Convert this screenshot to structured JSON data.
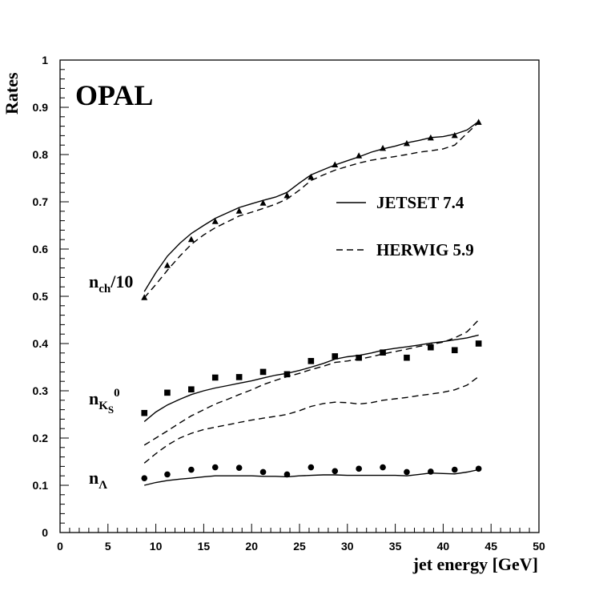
{
  "chart_data": {
    "type": "line",
    "title": "OPAL",
    "xlabel": "jet energy [GeV]",
    "ylabel": "Rates",
    "xlim": [
      0,
      50
    ],
    "ylim": [
      0,
      1
    ],
    "x_ticks": [
      "0",
      "5",
      "10",
      "15",
      "20",
      "25",
      "30",
      "35",
      "40",
      "45",
      "50"
    ],
    "y_ticks": [
      "0",
      "0.1",
      "0.2",
      "0.3",
      "0.4",
      "0.5",
      "0.6",
      "0.7",
      "0.8",
      "0.9",
      "1"
    ],
    "legend": {
      "placement": "middle-right",
      "entries": [
        {
          "name": "JETSET 7.4",
          "style": "solid"
        },
        {
          "name": "HERWIG 5.9",
          "style": "dashed"
        }
      ]
    },
    "annotations": {
      "nch": {
        "main": "n",
        "sub": "ch",
        "suffix": "/10"
      },
      "nk0": {
        "main": "n",
        "sub": "K",
        "subsub": "S",
        "sup": "0"
      },
      "nlambda": {
        "main": "n",
        "sub": "Λ"
      }
    },
    "series": [
      {
        "name": "n_ch/10 data",
        "kind": "points",
        "marker": "triangle",
        "x": [
          8.8,
          11.2,
          13.7,
          16.2,
          18.7,
          21.2,
          23.7,
          26.2,
          28.7,
          31.2,
          33.7,
          36.2,
          38.7,
          41.2,
          43.7
        ],
        "y": [
          0.497,
          0.565,
          0.62,
          0.658,
          0.68,
          0.697,
          0.713,
          0.752,
          0.778,
          0.797,
          0.813,
          0.823,
          0.835,
          0.84,
          0.868
        ]
      },
      {
        "name": "n_ch/10 JETSET 7.4",
        "kind": "line",
        "style": "solid",
        "x": [
          8.8,
          10,
          11.2,
          12.5,
          13.7,
          15,
          16.2,
          17.5,
          18.7,
          20,
          21.2,
          22.5,
          23.7,
          25,
          26.2,
          27.5,
          28.7,
          30,
          31.2,
          32.5,
          33.7,
          35,
          36.2,
          37.5,
          38.7,
          40,
          41.2,
          42.5,
          43.7
        ],
        "y": [
          0.51,
          0.55,
          0.585,
          0.612,
          0.633,
          0.65,
          0.665,
          0.677,
          0.688,
          0.696,
          0.703,
          0.71,
          0.72,
          0.74,
          0.757,
          0.768,
          0.778,
          0.787,
          0.795,
          0.805,
          0.812,
          0.818,
          0.825,
          0.83,
          0.836,
          0.838,
          0.843,
          0.852,
          0.87
        ]
      },
      {
        "name": "n_ch/10 HERWIG 5.9",
        "kind": "line",
        "style": "dashed",
        "x": [
          8.8,
          10,
          11.2,
          12.5,
          13.7,
          15,
          16.2,
          17.5,
          18.7,
          20,
          21.2,
          22.5,
          23.7,
          25,
          26.2,
          27.5,
          28.7,
          30,
          31.2,
          32.5,
          33.7,
          35,
          36.2,
          37.5,
          38.7,
          40,
          41.2,
          42.5,
          43.7
        ],
        "y": [
          0.497,
          0.525,
          0.555,
          0.585,
          0.61,
          0.63,
          0.645,
          0.658,
          0.67,
          0.678,
          0.686,
          0.695,
          0.706,
          0.725,
          0.745,
          0.757,
          0.767,
          0.775,
          0.782,
          0.788,
          0.792,
          0.796,
          0.8,
          0.805,
          0.808,
          0.812,
          0.82,
          0.845,
          0.868
        ]
      },
      {
        "name": "n_K0S data",
        "kind": "points",
        "marker": "square",
        "x": [
          8.8,
          11.2,
          13.7,
          16.2,
          18.7,
          21.2,
          23.7,
          26.2,
          28.7,
          31.2,
          33.7,
          36.2,
          38.7,
          41.2,
          43.7
        ],
        "y": [
          0.253,
          0.296,
          0.303,
          0.328,
          0.329,
          0.34,
          0.335,
          0.363,
          0.373,
          0.37,
          0.381,
          0.37,
          0.392,
          0.386,
          0.4
        ]
      },
      {
        "name": "n_K0S JETSET 7.4",
        "kind": "line",
        "style": "solid",
        "x": [
          8.8,
          10,
          11.2,
          12.5,
          13.7,
          15,
          16.2,
          17.5,
          18.7,
          20,
          21.2,
          22.5,
          23.7,
          25,
          26.2,
          27.5,
          28.7,
          30,
          31.2,
          32.5,
          33.7,
          35,
          36.2,
          37.5,
          38.7,
          40,
          41.2,
          42.5,
          43.7
        ],
        "y": [
          0.235,
          0.255,
          0.27,
          0.282,
          0.292,
          0.3,
          0.306,
          0.311,
          0.316,
          0.321,
          0.327,
          0.333,
          0.337,
          0.343,
          0.35,
          0.358,
          0.367,
          0.372,
          0.375,
          0.38,
          0.386,
          0.39,
          0.393,
          0.397,
          0.401,
          0.404,
          0.408,
          0.412,
          0.418
        ]
      },
      {
        "name": "n_K0S HERWIG 5.9 upper",
        "kind": "line",
        "style": "dashed",
        "x": [
          8.8,
          10,
          11.2,
          12.5,
          13.7,
          15,
          16.2,
          17.5,
          18.7,
          20,
          21.2,
          22.5,
          23.7,
          25,
          26.2,
          27.5,
          28.7,
          30,
          31.2,
          32.5,
          33.7,
          35,
          36.2,
          37.5,
          38.7,
          40,
          41.2,
          42.5,
          43.7
        ],
        "y": [
          0.185,
          0.2,
          0.215,
          0.232,
          0.247,
          0.26,
          0.272,
          0.282,
          0.292,
          0.302,
          0.313,
          0.322,
          0.33,
          0.337,
          0.345,
          0.352,
          0.36,
          0.363,
          0.367,
          0.372,
          0.378,
          0.383,
          0.388,
          0.394,
          0.398,
          0.403,
          0.412,
          0.425,
          0.45
        ]
      },
      {
        "name": "n_K0S HERWIG 5.9 lower",
        "kind": "line",
        "style": "dashed",
        "x": [
          8.8,
          10,
          11.2,
          12.5,
          13.7,
          15,
          16.2,
          17.5,
          18.7,
          20,
          21.2,
          22.5,
          23.7,
          25,
          26.2,
          27.5,
          28.7,
          30,
          31.2,
          32.5,
          33.7,
          35,
          36.2,
          37.5,
          38.7,
          40,
          41.2,
          42.5,
          43.7
        ],
        "y": [
          0.147,
          0.167,
          0.185,
          0.2,
          0.21,
          0.218,
          0.223,
          0.228,
          0.233,
          0.238,
          0.242,
          0.246,
          0.25,
          0.258,
          0.267,
          0.273,
          0.276,
          0.275,
          0.272,
          0.275,
          0.28,
          0.283,
          0.286,
          0.29,
          0.293,
          0.297,
          0.302,
          0.312,
          0.33
        ]
      },
      {
        "name": "n_Lambda data",
        "kind": "points",
        "marker": "circle",
        "x": [
          8.8,
          11.2,
          13.7,
          16.2,
          18.7,
          21.2,
          23.7,
          26.2,
          28.7,
          31.2,
          33.7,
          36.2,
          38.7,
          41.2,
          43.7
        ],
        "y": [
          0.115,
          0.123,
          0.133,
          0.138,
          0.137,
          0.128,
          0.123,
          0.138,
          0.13,
          0.135,
          0.138,
          0.128,
          0.129,
          0.133,
          0.135
        ]
      },
      {
        "name": "n_Lambda JETSET 7.4",
        "kind": "line",
        "style": "solid",
        "x": [
          8.8,
          10,
          11.2,
          12.5,
          13.7,
          15,
          16.2,
          17.5,
          18.7,
          20,
          21.2,
          22.5,
          23.7,
          25,
          26.2,
          27.5,
          28.7,
          30,
          31.2,
          32.5,
          33.7,
          35,
          36.2,
          37.5,
          38.7,
          40,
          41.2,
          42.5,
          43.7
        ],
        "y": [
          0.1,
          0.106,
          0.11,
          0.113,
          0.115,
          0.118,
          0.12,
          0.12,
          0.12,
          0.12,
          0.119,
          0.119,
          0.118,
          0.12,
          0.121,
          0.122,
          0.122,
          0.121,
          0.121,
          0.121,
          0.121,
          0.121,
          0.12,
          0.123,
          0.126,
          0.125,
          0.124,
          0.128,
          0.133
        ]
      }
    ]
  }
}
